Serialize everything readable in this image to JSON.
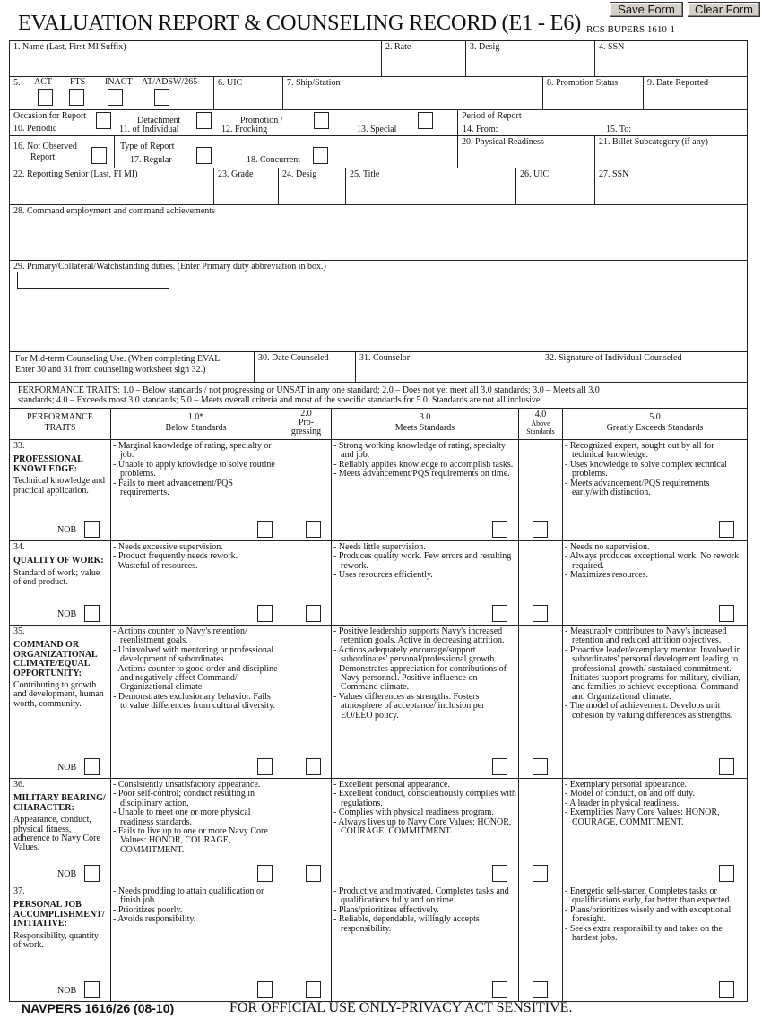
{
  "header": {
    "title": "EVALUATION REPORT & COUNSELING RECORD (E1 - E6)",
    "rcs": "RCS BUPERS 1610-1",
    "save_label": "Save Form",
    "clear_label": "Clear Form"
  },
  "fields": {
    "f1": "1. Name      (Last, First MI Suffix)",
    "f2": "2. Rate",
    "f3": "3.  Desig",
    "f4": "4.  SSN",
    "f5": "5.",
    "act": "ACT",
    "fts": "FTS",
    "inact": "INACT",
    "atadsw": "AT/ADSW/265",
    "f6": "6.  UIC",
    "f7": "7.  Ship/Station",
    "f8": "8.  Promotion Status",
    "f9": "9.  Date Reported",
    "occasion": "Occasion for Report",
    "f10": "10.  Periodic",
    "f11a": "Detachment",
    "f11b": "11.   of Individual",
    "f12a": "Promotion /",
    "f12b": "12.  Frocking",
    "f13": "13.  Special",
    "period": "Period of Report",
    "f14": "14.  From:",
    "f15": "15.  To:",
    "f16a": "16.  Not Observed",
    "f16b": "Report",
    "type": "Type of Report",
    "f17": "17.  Regular",
    "f18": "18.  Concurrent",
    "f20": "20.  Physical Readiness",
    "f21": "21.   Billet Subcategory (if any)",
    "f22": "22.  Reporting Senior  (Last,  FI  MI)",
    "f23": "23.  Grade",
    "f24": "24.  Desig",
    "f25": "25.  Title",
    "f26": "26.  UIC",
    "f27": "27.  SSN",
    "f28": "28.  Command employment and command achievements",
    "f29": "29.  Primary/Collateral/Watchstanding duties.  (Enter Primary duty abbreviation in box.)",
    "mid1": "For Mid-term Counseling Use.  (When completing EVAL",
    "mid2": "Enter 30 and 31 from counseling worksheet sign 32.)",
    "f30": "30.  Date Counseled",
    "f31": "31.  Counselor",
    "f32": "32.   Signature of Individual Counseled"
  },
  "perf_text1": "PERFORMANCE TRAITS:   1.0 – Below standards / not progressing or UNSAT in any one standard;    2.0 – Does  not yet meet all 3.0 standards;    3.0 – Meets all 3.0",
  "perf_text2": "standards;    4.0 – Exceeds most 3.0 standards;    5.0 – Meets overall criteria and most of the specific standards for 5.0.  Standards are not all inclusive.",
  "col_headers": {
    "traits": [
      "PERFORMANCE",
      "TRAITS"
    ],
    "c1": [
      "1.0*",
      "Below  Standards"
    ],
    "c2": [
      "2.0",
      "Pro-",
      "gressing"
    ],
    "c3": [
      "3.0",
      "Meets  Standards"
    ],
    "c4": [
      "4.0",
      "Above",
      "Standards"
    ],
    "c5": [
      "5.0",
      "Greatly  Exceeds  Standards"
    ]
  },
  "nob_label": "NOB",
  "traits": [
    {
      "num": "33.",
      "name": "PROFESSIONAL KNOWLEDGE:",
      "desc": "Technical knowledge and practical application.",
      "below": [
        "Marginal knowledge of rating, specialty or job.",
        "Unable to apply knowledge to solve routine problems.",
        "Fails to meet advancement/PQS requirements."
      ],
      "meets": [
        "Strong working knowledge of rating, specialty and job.",
        "Reliably applies knowledge to accomplish tasks.",
        "Meets advancement/PQS requirements on time."
      ],
      "greatly": [
        "Recognized expert, sought out by all for technical knowledge.",
        "Uses knowledge to solve complex technical problems.",
        "Meets advancement/PQS requirements early/with distinction."
      ]
    },
    {
      "num": "34.",
      "name": "QUALITY OF WORK:",
      "desc": "Standard of work; value of end product.",
      "below": [
        "Needs excessive supervision.",
        "Product frequently needs rework.",
        "Wasteful of resources."
      ],
      "meets": [
        "Needs little supervision.",
        "Produces quality work. Few errors and resulting rework.",
        "Uses resources efficiently."
      ],
      "greatly": [
        "Needs no supervision.",
        "Always produces exceptional work. No rework required.",
        "Maximizes resources."
      ]
    },
    {
      "num": "35.",
      "name": "COMMAND OR ORGANIZATIONAL CLIMATE/EQUAL OPPORTUNITY:",
      "desc": "Contributing to growth and development, human worth, community.",
      "below": [
        "Actions counter to Navy's retention/ reenlistment goals.",
        "Uninvolved with mentoring or professional development of subordinates.",
        "Actions counter to good order and discipline and negatively affect Command/ Organizational climate.",
        "Demonstrates exclusionary behavior. Fails to value differences from cultural diversity."
      ],
      "meets": [
        "Positive leadership supports Navy's increased retention goals. Active in decreasing attrition.",
        "Actions adequately encourage/support subordinates' personal/professional growth.",
        "Demonstrates appreciation for contributions of Navy personnel. Positive influence on Command climate.",
        "Values differences as strengths. Fosters atmosphere of acceptance/ inclusion per EO/EEO policy."
      ],
      "greatly": [
        "Measurably contributes to Navy's increased retention and reduced attrition objectives.",
        "Proactive leader/exemplary mentor. Involved in subordinates' personal development leading to professional growth/ sustained commitment.",
        "Initiates support programs for military, civilian, and families to achieve exceptional Command and Organizational climate.",
        "The model of achievement. Develops unit cohesion by valuing differences as strengths."
      ]
    },
    {
      "num": "36.",
      "name": "MILITARY BEARING/ CHARACTER:",
      "desc": "Appearance, conduct, physical fitness, adherence to Navy Core Values.",
      "below": [
        "Consistently unsatisfactory appearance.",
        "Poor self-control; conduct resulting in disciplinary action.",
        "Unable to meet one or more physical readiness standards.",
        "Fails to live up to one or more Navy Core Values: HONOR, COURAGE, COMMITMENT."
      ],
      "meets": [
        "Excellent personal appearance.",
        "Excellent conduct, conscientiously complies with regulations.",
        "Complies with physical readiness program.",
        "Always lives up to Navy Core Values: HONOR, COURAGE, COMMITMENT."
      ],
      "greatly": [
        "Exemplary personal appearance.",
        "Model of conduct, on and off duty.",
        "A leader in physical readiness.",
        "Exemplifies Navy Core Values: HONOR, COURAGE, COMMITMENT."
      ]
    },
    {
      "num": "37.",
      "name": "PERSONAL JOB ACCOMPLISHMENT/ INITIATIVE:",
      "desc": "Responsibility, quantity of work.",
      "below": [
        "Needs prodding to attain qualification or finish job.",
        "Prioritizes poorly.",
        "Avoids responsibility."
      ],
      "meets": [
        "Productive and motivated. Completes tasks and qualifications fully and on time.",
        "Plans/prioritizes effectively.",
        "Reliable, dependable, willingly accepts responsibility."
      ],
      "greatly": [
        "Energetic self-starter. Completes tasks or qualifications early, far better than expected.",
        "Plans/prioritizes wisely and with exceptional foresight.",
        "Seeks extra responsibility and takes on the hardest jobs."
      ]
    }
  ],
  "footer": {
    "form_id": "NAVPERS 1616/26 (08-10)",
    "notice": "FOR OFFICIAL USE ONLY-PRIVACY ACT SENSITIVE."
  }
}
